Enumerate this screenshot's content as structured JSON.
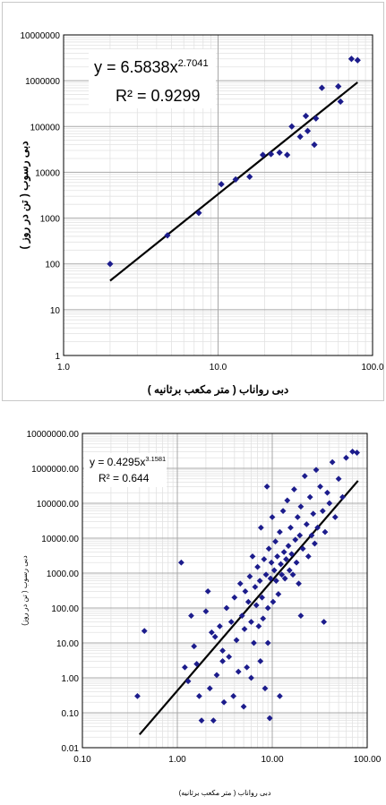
{
  "chart_data": [
    {
      "type": "scatter",
      "xlabel": "دبی رواناب ( متر مکعب برثانیه )",
      "ylabel": "دبی رسوب ( تن در روز )",
      "x_scale": "log",
      "y_scale": "log",
      "xlim": [
        1,
        100
      ],
      "ylim": [
        1,
        10000000
      ],
      "x_tick_labels": [
        "1.0",
        "10.0",
        "100.0"
      ],
      "y_tick_labels": [
        "1",
        "10",
        "100",
        "1000",
        "10000",
        "100000",
        "1000000",
        "10000000"
      ],
      "grid": true,
      "equation_prefix": "y = 6.5838x",
      "equation_exponent": "2.7041",
      "r2_label": "R² = 0.9299",
      "trendline": {
        "type": "power",
        "a": 6.5838,
        "b": 2.7041
      },
      "marker_color": "#1c1c8c",
      "line_color": "#000000",
      "points": [
        [
          2.0,
          100
        ],
        [
          4.7,
          420
        ],
        [
          7.5,
          1300
        ],
        [
          10.5,
          5500
        ],
        [
          13,
          7000
        ],
        [
          16,
          8000
        ],
        [
          19.5,
          24000
        ],
        [
          22,
          25000
        ],
        [
          25,
          27000
        ],
        [
          28,
          24000
        ],
        [
          30,
          100000
        ],
        [
          34,
          60000
        ],
        [
          37,
          170000
        ],
        [
          38,
          80000
        ],
        [
          43,
          150000
        ],
        [
          42,
          40000
        ],
        [
          47,
          700000
        ],
        [
          60,
          750000
        ],
        [
          62,
          350000
        ],
        [
          73,
          3000000
        ],
        [
          80,
          2800000
        ]
      ]
    },
    {
      "type": "scatter",
      "xlabel": "دبی رواناب ( متر مکعب برثانیه)",
      "ylabel": "دبی رسوب ( تن در روز)",
      "x_scale": "log",
      "y_scale": "log",
      "xlim": [
        0.1,
        100
      ],
      "ylim": [
        0.01,
        10000000
      ],
      "x_tick_labels": [
        "0.10",
        "1.00",
        "10.00",
        "100.00"
      ],
      "y_tick_labels": [
        "0.01",
        "0.10",
        "1.00",
        "10.00",
        "100.00",
        "1000.00",
        "10000.00",
        "100000.00",
        "1000000.00",
        "10000000.00"
      ],
      "grid": true,
      "equation_prefix": "y = 0.4295x",
      "equation_exponent": "3.1581",
      "r2_label": "R² = 0.644",
      "trendline": {
        "type": "power",
        "a": 0.4295,
        "b": 3.1581
      },
      "marker_color": "#1c1c8c",
      "line_color": "#000000",
      "points": [
        [
          0.38,
          0.3
        ],
        [
          0.45,
          22
        ],
        [
          1.1,
          2000
        ],
        [
          1.2,
          2
        ],
        [
          1.3,
          0.8
        ],
        [
          1.4,
          60
        ],
        [
          1.5,
          8
        ],
        [
          1.6,
          2.5
        ],
        [
          1.7,
          0.3
        ],
        [
          1.8,
          0.06
        ],
        [
          2.0,
          80
        ],
        [
          2.1,
          300
        ],
        [
          2.2,
          0.5
        ],
        [
          2.4,
          0.06
        ],
        [
          2.5,
          15
        ],
        [
          2.6,
          1.2
        ],
        [
          2.8,
          30
        ],
        [
          3.0,
          6
        ],
        [
          3.1,
          0.2
        ],
        [
          3.3,
          100
        ],
        [
          3.5,
          4
        ],
        [
          3.7,
          40
        ],
        [
          3.9,
          0.3
        ],
        [
          4.0,
          200
        ],
        [
          4.2,
          12
        ],
        [
          4.4,
          1.5
        ],
        [
          4.6,
          500
        ],
        [
          4.8,
          60
        ],
        [
          5.0,
          0.15
        ],
        [
          5.1,
          25
        ],
        [
          5.2,
          300
        ],
        [
          5.4,
          2
        ],
        [
          5.6,
          150
        ],
        [
          5.8,
          800
        ],
        [
          6.0,
          40
        ],
        [
          6.2,
          3000
        ],
        [
          6.4,
          10
        ],
        [
          6.6,
          400
        ],
        [
          6.8,
          120
        ],
        [
          7.0,
          1500
        ],
        [
          7.2,
          30
        ],
        [
          7.4,
          600
        ],
        [
          7.6,
          20000
        ],
        [
          7.8,
          200
        ],
        [
          8.0,
          50
        ],
        [
          8.2,
          2500
        ],
        [
          8.4,
          0.5
        ],
        [
          8.6,
          900
        ],
        [
          8.8,
          300000
        ],
        [
          9.0,
          100
        ],
        [
          9.2,
          5000
        ],
        [
          9.4,
          0.07
        ],
        [
          9.6,
          700
        ],
        [
          9.8,
          2000
        ],
        [
          10.0,
          40000
        ],
        [
          10.2,
          150
        ],
        [
          10.5,
          1200
        ],
        [
          10.8,
          8000
        ],
        [
          11.0,
          600
        ],
        [
          11.3,
          3000
        ],
        [
          11.6,
          250
        ],
        [
          12.0,
          15000
        ],
        [
          12.3,
          1800
        ],
        [
          12.6,
          900
        ],
        [
          13.0,
          60000
        ],
        [
          13.3,
          4000
        ],
        [
          13.6,
          700
        ],
        [
          14.0,
          2500
        ],
        [
          14.4,
          120000
        ],
        [
          14.8,
          6000
        ],
        [
          15.2,
          1200
        ],
        [
          15.6,
          20000
        ],
        [
          16.0,
          3500
        ],
        [
          16.5,
          900
        ],
        [
          17.0,
          250000
        ],
        [
          17.5,
          9000
        ],
        [
          18.0,
          2000
        ],
        [
          18.5,
          40000
        ],
        [
          19.0,
          500
        ],
        [
          19.5,
          12000
        ],
        [
          20.0,
          80000
        ],
        [
          21.0,
          5000
        ],
        [
          22.0,
          600000
        ],
        [
          23.0,
          25000
        ],
        [
          24.0,
          3000
        ],
        [
          25.0,
          150000
        ],
        [
          26.0,
          12000
        ],
        [
          27.0,
          50000
        ],
        [
          28.0,
          7000
        ],
        [
          29.0,
          900000
        ],
        [
          30.0,
          20000
        ],
        [
          32.0,
          300000
        ],
        [
          34.0,
          60000
        ],
        [
          36.0,
          15000
        ],
        [
          38.0,
          200000
        ],
        [
          40.0,
          100000
        ],
        [
          43.0,
          1500000
        ],
        [
          46.0,
          40000
        ],
        [
          50.0,
          500000
        ],
        [
          55.0,
          150000
        ],
        [
          60.0,
          2000000
        ],
        [
          70.0,
          3000000
        ],
        [
          78.0,
          2800000
        ],
        [
          9.0,
          10
        ],
        [
          7.5,
          3
        ],
        [
          12.0,
          0.3
        ],
        [
          20.0,
          60
        ],
        [
          35.0,
          40
        ],
        [
          6.0,
          1
        ],
        [
          3.0,
          3
        ],
        [
          2.3,
          20
        ]
      ]
    }
  ]
}
